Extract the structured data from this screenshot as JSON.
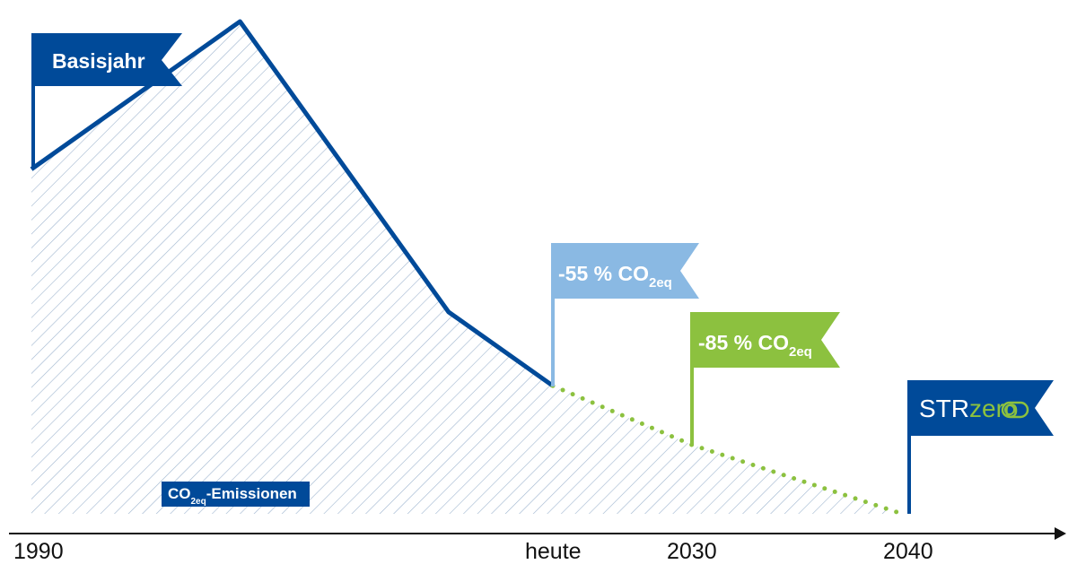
{
  "chart_data": {
    "type": "area",
    "x_tick_labels": [
      "1990",
      "heute",
      "2030",
      "2040"
    ],
    "series": [
      {
        "style": "solid",
        "points": [
          {
            "x": 1990,
            "y": 70
          },
          {
            "x": 1998,
            "y": 100
          },
          {
            "x": 2006,
            "y": 41
          },
          {
            "x": 2010,
            "y": 26
          }
        ]
      },
      {
        "style": "dotted",
        "points": [
          {
            "x": 2010,
            "y": 26
          },
          {
            "x": 2030,
            "y": 14
          },
          {
            "x": 2040,
            "y": 0
          }
        ]
      }
    ],
    "ylim": [
      0,
      100
    ],
    "grid": false,
    "fill": "hatched",
    "colors": {
      "line_dark_blue": "#004a99",
      "line_green": "#8cc13f",
      "flag_light_blue": "#8ab9e3",
      "flag_green": "#8cc13f",
      "hatch": "#9fb5cf",
      "axis": "#111111"
    }
  },
  "flags": {
    "basisjahr": {
      "label": "Basisjahr"
    },
    "minus55": {
      "prefix": "-55 % CO",
      "sub": "2eq"
    },
    "minus85": {
      "prefix": "-85 % CO",
      "sub": "2eq"
    },
    "strzero": {
      "part1": "STR",
      "part2": "zero"
    }
  },
  "area_label": {
    "prefix": "CO",
    "sub": "2eq",
    "suffix": "-Emissionen"
  }
}
